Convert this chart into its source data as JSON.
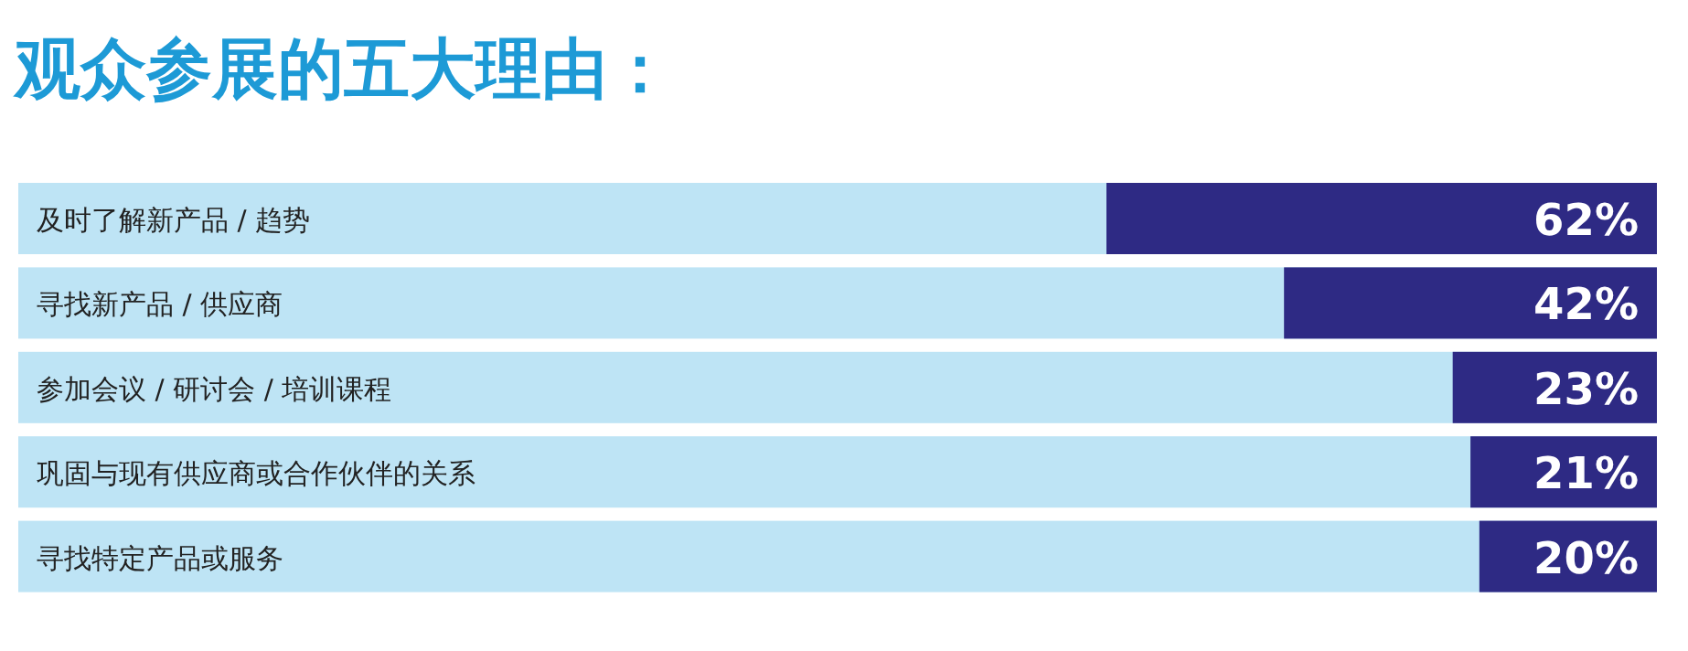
{
  "chart_data": {
    "type": "bar",
    "orientation": "horizontal",
    "title": "观众参展的五大理由：",
    "categories": [
      "及时了解新产品 / 趋势",
      "寻找新产品 / 供应商",
      "参加会议 / 研讨会 / 培训课程",
      "巩固与现有供应商或合作伙伴的关系",
      "寻找特定产品或服务"
    ],
    "values": [
      62,
      42,
      23,
      21,
      20
    ],
    "value_labels": [
      "62%",
      "42%",
      "23%",
      "21%",
      "20%"
    ],
    "color": "#2e2a84"
  }
}
